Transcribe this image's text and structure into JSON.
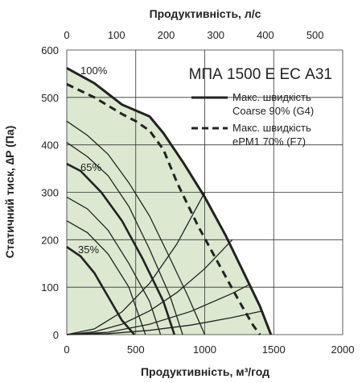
{
  "chart_data": {
    "type": "line",
    "title": "МПА 1500 Е ЕС А31",
    "xlabel": "Продуктивність, м³/год",
    "x2label": "Продуктивність, л/с",
    "ylabel": "Статичний тиск, ∆P (Па)",
    "xlim": [
      0,
      2000
    ],
    "ylim": [
      0,
      600
    ],
    "x2lim": [
      0,
      555.6
    ],
    "xticks": [
      "0",
      "500",
      "1000",
      "1500",
      "2000"
    ],
    "x2ticks": [
      "0",
      "100",
      "200",
      "300",
      "400",
      "500"
    ],
    "yticks": [
      "0",
      "100",
      "200",
      "300",
      "400",
      "500",
      "600"
    ],
    "grid": true,
    "legend_position": "top-right",
    "colors": {
      "fill": "#dce8d0",
      "curve": "#222222",
      "grid": "#333333"
    },
    "series": [
      {
        "name": "Макс. швидкість Coarse 90% (G4)",
        "style": "solid",
        "x": [
          0,
          200,
          400,
          600,
          700,
          850,
          1000,
          1150,
          1300,
          1400,
          1480
        ],
        "y": [
          562,
          530,
          485,
          460,
          425,
          360,
          290,
          210,
          120,
          60,
          0
        ]
      },
      {
        "name": "Макс. швидкість ePM1 70% (F7)",
        "style": "dashed",
        "x": [
          0,
          200,
          400,
          500,
          600,
          700,
          800,
          950,
          1100,
          1250,
          1350,
          1400
        ],
        "y": [
          528,
          500,
          465,
          450,
          430,
          390,
          320,
          230,
          150,
          70,
          20,
          0
        ]
      }
    ],
    "speed_curves": [
      {
        "label": "100%",
        "x": [
          0,
          200,
          400,
          600,
          700,
          850,
          1000,
          1150,
          1300,
          1400,
          1480
        ],
        "y": [
          562,
          530,
          485,
          460,
          425,
          360,
          290,
          210,
          120,
          60,
          0
        ]
      },
      {
        "label": "",
        "x": [
          0,
          150,
          300,
          450,
          600,
          750,
          880,
          1000
        ],
        "y": [
          450,
          420,
          380,
          320,
          250,
          160,
          80,
          0
        ]
      },
      {
        "label": "",
        "x": [
          0,
          150,
          300,
          450,
          600,
          750,
          840
        ],
        "y": [
          405,
          375,
          335,
          270,
          180,
          80,
          0
        ]
      },
      {
        "label": "65%",
        "x": [
          0,
          100,
          250,
          400,
          550,
          700,
          780
        ],
        "y": [
          360,
          345,
          300,
          240,
          160,
          70,
          0
        ]
      },
      {
        "label": "",
        "x": [
          0,
          150,
          300,
          450,
          600,
          680
        ],
        "y": [
          290,
          265,
          220,
          150,
          70,
          0
        ]
      },
      {
        "label": "",
        "x": [
          0,
          150,
          300,
          450,
          570
        ],
        "y": [
          240,
          215,
          170,
          100,
          0
        ]
      },
      {
        "label": "35%",
        "x": [
          0,
          100,
          200,
          300,
          400,
          490
        ],
        "y": [
          185,
          165,
          130,
          80,
          30,
          0
        ]
      }
    ],
    "system_curves": [
      {
        "x": [
          0,
          200,
          400,
          600,
          800,
          1000
        ],
        "y": [
          0,
          12,
          48,
          108,
          192,
          300
        ]
      },
      {
        "x": [
          0,
          200,
          400,
          600,
          800,
          1000,
          1200
        ],
        "y": [
          0,
          6,
          22,
          50,
          89,
          139,
          200
        ]
      },
      {
        "x": [
          0,
          300,
          600,
          900,
          1200,
          1320
        ],
        "y": [
          0,
          5,
          22,
          49,
          87,
          105
        ]
      },
      {
        "x": [
          0,
          300,
          600,
          900,
          1200,
          1420
        ],
        "y": [
          0,
          2,
          9,
          20,
          36,
          50
        ]
      }
    ],
    "annotations": [
      "100%",
      "65%",
      "35%"
    ]
  }
}
